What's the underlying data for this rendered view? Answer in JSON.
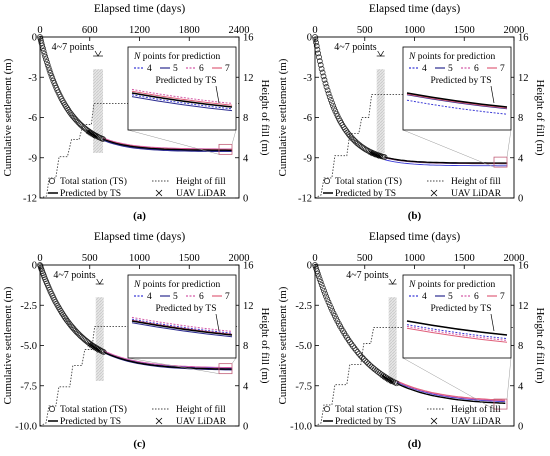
{
  "figure": {
    "colors": {
      "n4": "#3b3bd6",
      "n5": "#2b2b8f",
      "n6": "#d45aa8",
      "n7": "#e0607a",
      "ts_line": "#000000",
      "hatch": "#c8c8c8"
    },
    "legend_top": {
      "title_prefix": "N",
      "title_rest": " points for prediction",
      "labels": [
        "4",
        "5",
        "6",
        "7"
      ]
    },
    "legend_bottom": {
      "total_station": "Total station (TS)",
      "height_of_fill": "Height of fill",
      "predicted": "Predicted by TS",
      "lidar": "UAV LiDAR"
    }
  },
  "chart_data": [
    {
      "type": "line",
      "label": "(a)",
      "title": "Elapsed time (days)",
      "xlabel": "Elapsed time (days)",
      "ylabel": "Cumulative settlement (m)",
      "y2label": "Height of fill (m)",
      "xlim": [
        0,
        2400
      ],
      "xticks": [
        "0",
        "600",
        "1200",
        "1800",
        "2400"
      ],
      "ylim": [
        -12,
        0
      ],
      "yticks": [
        "0",
        "-3",
        "-6",
        "-9",
        "-12"
      ],
      "y2lim": [
        0,
        16
      ],
      "y2ticks": [
        "0",
        "4",
        "8",
        "12",
        "16"
      ],
      "points_annotation": "4~7 points",
      "inset_annotation": "Predicted by TS",
      "window": [
        640,
        760
      ],
      "ts_final": -8.45,
      "ts_tau": 330,
      "ts_end": 760,
      "fill_height": [
        [
          0,
          0
        ],
        [
          80,
          0.2
        ],
        [
          110,
          2.0
        ],
        [
          190,
          2.0
        ],
        [
          230,
          4.1
        ],
        [
          330,
          4.1
        ],
        [
          380,
          5.8
        ],
        [
          470,
          5.8
        ],
        [
          520,
          7.3
        ],
        [
          620,
          7.3
        ],
        [
          650,
          9.4
        ],
        [
          2400,
          9.4
        ]
      ],
      "series": [
        {
          "name": "4",
          "final": -8.5
        },
        {
          "name": "5",
          "final": -8.55
        },
        {
          "name": "6",
          "final": -8.35
        },
        {
          "name": "7",
          "final": -8.4
        }
      ]
    },
    {
      "type": "line",
      "label": "(b)",
      "title": "Elapsed time (days)",
      "xlabel": "Elapsed time (days)",
      "ylabel": "Cumulative settlement (m)",
      "y2label": "Height of fill (m)",
      "xlim": [
        0,
        2000
      ],
      "xticks": [
        "0",
        "500",
        "1000",
        "1500",
        "2000"
      ],
      "ylim": [
        -12,
        0
      ],
      "yticks": [
        "0",
        "-3",
        "-6",
        "-9",
        "-12"
      ],
      "y2lim": [
        0,
        16
      ],
      "y2ticks": [
        "0",
        "4",
        "8",
        "12",
        "16"
      ],
      "points_annotation": "4~7 points",
      "inset_annotation": "Predicted by TS",
      "window": [
        620,
        700
      ],
      "ts_final": -9.4,
      "ts_tau": 230,
      "ts_end": 700,
      "fill_height": [
        [
          0,
          0
        ],
        [
          60,
          0.3
        ],
        [
          90,
          2.0
        ],
        [
          170,
          2.0
        ],
        [
          200,
          4.2
        ],
        [
          320,
          4.2
        ],
        [
          350,
          6.4
        ],
        [
          440,
          6.4
        ],
        [
          470,
          8.0
        ],
        [
          540,
          8.0
        ],
        [
          570,
          10.3
        ],
        [
          2000,
          10.3
        ]
      ],
      "series": [
        {
          "name": "4",
          "final": -9.6
        },
        {
          "name": "5",
          "final": -9.45
        },
        {
          "name": "6",
          "final": -9.42
        },
        {
          "name": "7",
          "final": -9.43
        }
      ]
    },
    {
      "type": "line",
      "label": "(c)",
      "title": "Elapsed time (days)",
      "xlabel": "Elapsed time (days)",
      "ylabel": "Cumulative settlement (m)",
      "y2label": "Height of fill (m)",
      "xlim": [
        0,
        2000
      ],
      "xticks": [
        "0",
        "500",
        "1000",
        "1500",
        "2000"
      ],
      "ylim": [
        -10,
        0
      ],
      "yticks": [
        "0",
        "-2.5",
        "-5.0",
        "-7.5",
        "-10.0"
      ],
      "y2lim": [
        0,
        16
      ],
      "y2ticks": [
        "0",
        "4",
        "8",
        "12",
        "16"
      ],
      "points_annotation": "4~7 points",
      "inset_annotation": "Predicted by TS",
      "window": [
        560,
        640
      ],
      "ts_final": -6.5,
      "ts_tau": 360,
      "ts_end": 640,
      "fill_height": [
        [
          0,
          0
        ],
        [
          60,
          0.3
        ],
        [
          90,
          2.0
        ],
        [
          160,
          2.0
        ],
        [
          190,
          3.9
        ],
        [
          300,
          3.9
        ],
        [
          330,
          6.0
        ],
        [
          420,
          6.0
        ],
        [
          450,
          7.6
        ],
        [
          520,
          7.6
        ],
        [
          550,
          9.9
        ],
        [
          2000,
          9.9
        ]
      ],
      "series": [
        {
          "name": "4",
          "final": -6.45
        },
        {
          "name": "5",
          "final": -6.55
        },
        {
          "name": "6",
          "final": -6.4
        },
        {
          "name": "7",
          "final": -6.48
        }
      ]
    },
    {
      "type": "line",
      "label": "(d)",
      "title": "Elapsed time (days)",
      "xlabel": "Elapsed time (days)",
      "ylabel": "Cumulative settlement (m)",
      "y2label": "Height of fill (m)",
      "xlim": [
        0,
        2000
      ],
      "xticks": [
        "0",
        "500",
        "1000",
        "1500",
        "2000"
      ],
      "ylim": [
        -10,
        0
      ],
      "yticks": [
        "0",
        "-2.5",
        "-5.0",
        "-7.5",
        "-10.0"
      ],
      "y2lim": [
        0,
        16
      ],
      "y2ticks": [
        "0",
        "4",
        "8",
        "12",
        "16"
      ],
      "points_annotation": "4~7 points",
      "inset_annotation": "Predicted by TS",
      "window": [
        740,
        820
      ],
      "ts_final": -8.7,
      "ts_tau": 440,
      "ts_end": 820,
      "fill_height": [
        [
          0,
          0
        ],
        [
          60,
          0.3
        ],
        [
          90,
          2.1
        ],
        [
          170,
          2.1
        ],
        [
          200,
          4.1
        ],
        [
          320,
          4.1
        ],
        [
          350,
          6.1
        ],
        [
          460,
          6.1
        ],
        [
          490,
          8.2
        ],
        [
          560,
          8.2
        ],
        [
          590,
          9.8
        ],
        [
          2000,
          9.8
        ]
      ],
      "series": [
        {
          "name": "4",
          "final": -8.6
        },
        {
          "name": "5",
          "final": -8.7
        },
        {
          "name": "6",
          "final": -8.55
        },
        {
          "name": "7",
          "final": -8.5
        }
      ]
    }
  ]
}
